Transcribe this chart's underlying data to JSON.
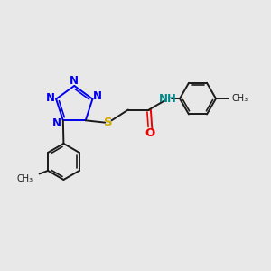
{
  "bg_color": "#e8e8e8",
  "bond_color": "#1a1a1a",
  "N_color": "#0000ee",
  "S_color": "#ccaa00",
  "O_color": "#ee0000",
  "NH_color": "#008888",
  "bond_width": 1.4,
  "font_size": 8.5,
  "xlim": [
    0,
    10
  ],
  "ylim": [
    0,
    10
  ]
}
